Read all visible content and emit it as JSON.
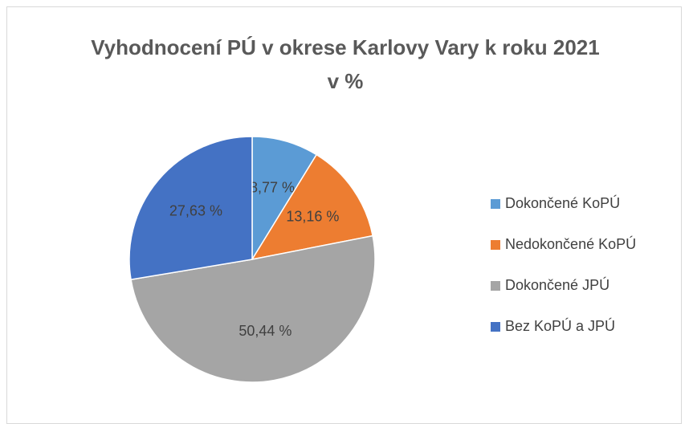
{
  "chart_data": {
    "type": "pie",
    "title": "Vyhodnocení PÚ v okrese Karlovy Vary k roku 2021 v %",
    "categories": [
      "Dokončené KoPÚ",
      "Nedokončené KoPÚ",
      "Dokončené JPÚ",
      "Bez KoPÚ a JPÚ"
    ],
    "values": [
      8.77,
      13.16,
      50.44,
      27.63
    ],
    "value_labels": [
      "8,77 %",
      "13,16 %",
      "50,44 %",
      "27,63 %"
    ],
    "colors": [
      "#5b9bd5",
      "#ed7d31",
      "#a5a5a5",
      "#4472c4"
    ],
    "legend": "right"
  }
}
